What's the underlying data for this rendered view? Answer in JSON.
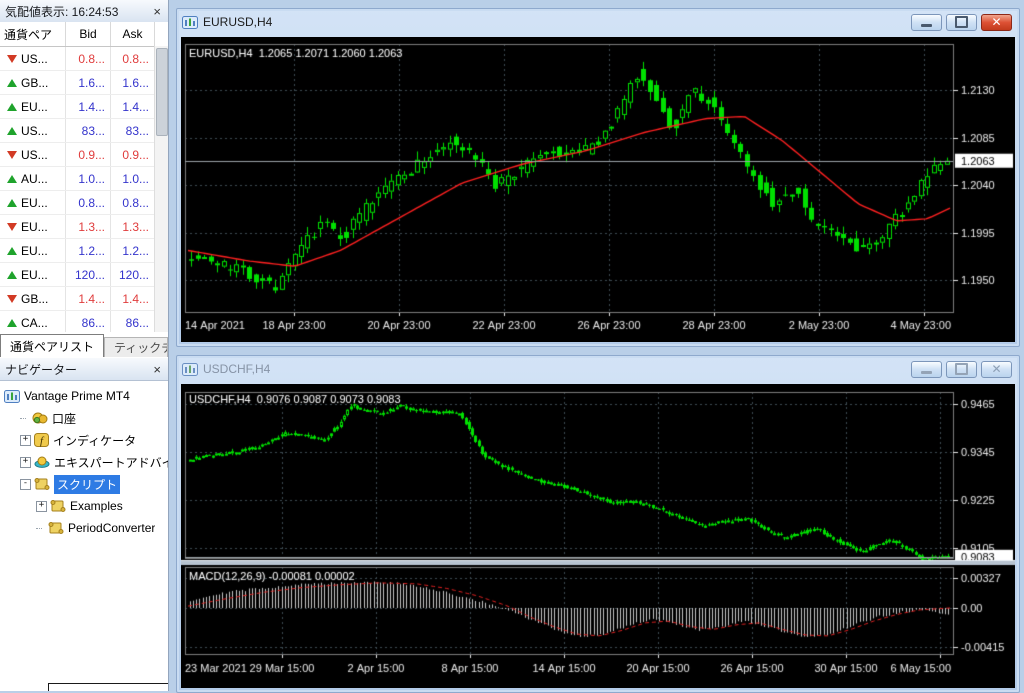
{
  "ui": {
    "close": "×",
    "close_x": "✕",
    "plus": "+",
    "minus": "-"
  },
  "market_watch": {
    "title": "気配値表示: 16:24:53",
    "columns": [
      "通貨ペア",
      "Bid",
      "Ask"
    ],
    "rows": [
      {
        "symbol": "US...",
        "direction": "down",
        "bid": "0.8...",
        "ask": "0.8...",
        "value_color": "#e03c3c"
      },
      {
        "symbol": "GB...",
        "direction": "up",
        "bid": "1.6...",
        "ask": "1.6...",
        "value_color": "#3434cc"
      },
      {
        "symbol": "EU...",
        "direction": "up",
        "bid": "1.4...",
        "ask": "1.4...",
        "value_color": "#3434cc"
      },
      {
        "symbol": "US...",
        "direction": "up",
        "bid": "83...",
        "ask": "83...",
        "value_color": "#3434cc"
      },
      {
        "symbol": "US...",
        "direction": "down",
        "bid": "0.9...",
        "ask": "0.9...",
        "value_color": "#e03c3c"
      },
      {
        "symbol": "AU...",
        "direction": "up",
        "bid": "1.0...",
        "ask": "1.0...",
        "value_color": "#3434cc"
      },
      {
        "symbol": "EU...",
        "direction": "up",
        "bid": "0.8...",
        "ask": "0.8...",
        "value_color": "#3434cc"
      },
      {
        "symbol": "EU...",
        "direction": "down",
        "bid": "1.3...",
        "ask": "1.3...",
        "value_color": "#e03c3c"
      },
      {
        "symbol": "EU...",
        "direction": "up",
        "bid": "1.2...",
        "ask": "1.2...",
        "value_color": "#3434cc"
      },
      {
        "symbol": "EU...",
        "direction": "up",
        "bid": "120...",
        "ask": "120...",
        "value_color": "#3434cc"
      },
      {
        "symbol": "GB...",
        "direction": "down",
        "bid": "1.4...",
        "ask": "1.4...",
        "value_color": "#e03c3c"
      },
      {
        "symbol": "CA...",
        "direction": "up",
        "bid": "86...",
        "ask": "86...",
        "value_color": "#3434cc"
      }
    ],
    "tabs": [
      {
        "label": "通貨ペアリスト",
        "active": true
      },
      {
        "label": "ティックチャート",
        "active": false
      }
    ]
  },
  "navigator": {
    "title": "ナビゲーター",
    "items": [
      {
        "label": "Vantage Prime MT4",
        "icon": "chart",
        "level": 0,
        "expand": null,
        "selected": false
      },
      {
        "label": "口座",
        "icon": "accounts",
        "level": 1,
        "expand": null,
        "selected": false
      },
      {
        "label": "インディケータ",
        "icon": "indicator",
        "level": 1,
        "expand": "plus",
        "selected": false
      },
      {
        "label": "エキスパートアドバイザ",
        "icon": "expert",
        "level": 1,
        "expand": "plus",
        "selected": false
      },
      {
        "label": "スクリプト",
        "icon": "script",
        "level": 1,
        "expand": "minus",
        "selected": true
      },
      {
        "label": "Examples",
        "icon": "script",
        "level": 2,
        "expand": "plus",
        "selected": false
      },
      {
        "label": "PeriodConverter",
        "icon": "script",
        "level": 2,
        "expand": null,
        "selected": false
      }
    ]
  },
  "windows": [
    {
      "title": "EURUSD,H4",
      "state": "active"
    },
    {
      "title": "USDCHF,H4",
      "state": "inactive"
    }
  ],
  "chart_data": [
    {
      "type": "candlestick",
      "symbol": "EURUSD,H4",
      "timeframe": "H4",
      "info_label": "EURUSD,H4  1.2065 1.2071 1.2060 1.2063",
      "ohlc": {
        "open": 1.2065,
        "high": 1.2071,
        "low": 1.206,
        "close": 1.2063
      },
      "current_price": 1.2063,
      "current_price_label": "1.2063",
      "y_ticks": [
        1.213,
        1.2085,
        1.204,
        1.1995,
        1.195
      ],
      "y_tick_labels": [
        "1.2130",
        "1.2085",
        "1.2040",
        "1.1995",
        "1.1950"
      ],
      "x_tick_labels": [
        "14 Apr 2021",
        "18 Apr 23:00",
        "20 Apr 23:00",
        "22 Apr 23:00",
        "26 Apr 23:00",
        "28 Apr 23:00",
        "2 May 23:00",
        "4 May 23:00"
      ],
      "candle_count": 118,
      "price_anchors": [
        [
          0,
          1.1975
        ],
        [
          0.04,
          1.1966
        ],
        [
          0.08,
          1.1958
        ],
        [
          0.12,
          1.1944
        ],
        [
          0.15,
          1.1975
        ],
        [
          0.18,
          1.2005
        ],
        [
          0.21,
          1.1992
        ],
        [
          0.24,
          1.2018
        ],
        [
          0.28,
          1.2048
        ],
        [
          0.32,
          1.2065
        ],
        [
          0.35,
          1.2083
        ],
        [
          0.38,
          1.2068
        ],
        [
          0.41,
          1.204
        ],
        [
          0.44,
          1.2052
        ],
        [
          0.48,
          1.2072
        ],
        [
          0.52,
          1.2068
        ],
        [
          0.55,
          1.2082
        ],
        [
          0.58,
          1.212
        ],
        [
          0.6,
          1.2148
        ],
        [
          0.62,
          1.2128
        ],
        [
          0.645,
          1.2092
        ],
        [
          0.67,
          1.213
        ],
        [
          0.69,
          1.2122
        ],
        [
          0.72,
          1.2088
        ],
        [
          0.75,
          1.205
        ],
        [
          0.78,
          1.2022
        ],
        [
          0.81,
          1.2038
        ],
        [
          0.83,
          1.2005
        ],
        [
          0.86,
          1.1992
        ],
        [
          0.89,
          1.198
        ],
        [
          0.92,
          1.1992
        ],
        [
          0.95,
          1.2015
        ],
        [
          0.98,
          1.2048
        ],
        [
          1,
          1.2063
        ]
      ],
      "ma_anchors": [
        [
          0,
          1.1978
        ],
        [
          0.08,
          1.1968
        ],
        [
          0.14,
          1.1963
        ],
        [
          0.2,
          1.1978
        ],
        [
          0.28,
          1.201
        ],
        [
          0.36,
          1.2042
        ],
        [
          0.44,
          1.206
        ],
        [
          0.52,
          1.2072
        ],
        [
          0.6,
          1.209
        ],
        [
          0.68,
          1.2103
        ],
        [
          0.73,
          1.2105
        ],
        [
          0.78,
          1.2082
        ],
        [
          0.83,
          1.2052
        ],
        [
          0.88,
          1.2022
        ],
        [
          0.93,
          1.2006
        ],
        [
          0.97,
          1.2008
        ],
        [
          1,
          1.2018
        ]
      ],
      "colors": {
        "background": "#000000",
        "grid": "#3d4b52",
        "candle": "#00e000",
        "ma_line": "#ff2020",
        "bid_line": "#9aa2a8",
        "axis_text": "#e8e8e8",
        "frame": "#7d7d7d",
        "tag_bg": "#ffffff",
        "tag_text": "#000000"
      }
    },
    {
      "type": "candlestick+macd",
      "symbol": "USDCHF,H4",
      "timeframe": "H4",
      "info_label": "USDCHF,H4  0.9076 0.9087 0.9073 0.9083",
      "ohlc": {
        "open": 0.9076,
        "high": 0.9087,
        "low": 0.9073,
        "close": 0.9083
      },
      "current_price": 0.9083,
      "current_price_label": "0.9083",
      "y_ticks": [
        0.9465,
        0.9345,
        0.9225,
        0.9105
      ],
      "y_tick_labels": [
        "0.9465",
        "0.9345",
        "0.9225",
        "0.9105"
      ],
      "x_tick_labels": [
        "23 Mar 2021",
        "29 Mar 15:00",
        "2 Apr 15:00",
        "8 Apr 15:00",
        "14 Apr 15:00",
        "20 Apr 15:00",
        "26 Apr 15:00",
        "30 Apr 15:00",
        "6 May 15:00"
      ],
      "candle_count": 232,
      "price_anchors": [
        [
          0,
          0.9325
        ],
        [
          0.03,
          0.9338
        ],
        [
          0.07,
          0.9346
        ],
        [
          0.1,
          0.9362
        ],
        [
          0.13,
          0.9392
        ],
        [
          0.16,
          0.9385
        ],
        [
          0.18,
          0.9372
        ],
        [
          0.2,
          0.9412
        ],
        [
          0.215,
          0.9462
        ],
        [
          0.24,
          0.9448
        ],
        [
          0.26,
          0.944
        ],
        [
          0.28,
          0.9462
        ],
        [
          0.3,
          0.945
        ],
        [
          0.33,
          0.9445
        ],
        [
          0.36,
          0.9442
        ],
        [
          0.375,
          0.9395
        ],
        [
          0.39,
          0.934
        ],
        [
          0.41,
          0.9315
        ],
        [
          0.44,
          0.929
        ],
        [
          0.47,
          0.927
        ],
        [
          0.5,
          0.9258
        ],
        [
          0.53,
          0.924
        ],
        [
          0.56,
          0.9218
        ],
        [
          0.59,
          0.9222
        ],
        [
          0.62,
          0.9205
        ],
        [
          0.65,
          0.9182
        ],
        [
          0.68,
          0.916
        ],
        [
          0.71,
          0.9172
        ],
        [
          0.74,
          0.9178
        ],
        [
          0.77,
          0.9145
        ],
        [
          0.79,
          0.913
        ],
        [
          0.81,
          0.9142
        ],
        [
          0.83,
          0.9155
        ],
        [
          0.85,
          0.913
        ],
        [
          0.87,
          0.9112
        ],
        [
          0.89,
          0.9096
        ],
        [
          0.91,
          0.9114
        ],
        [
          0.93,
          0.9126
        ],
        [
          0.95,
          0.9102
        ],
        [
          0.97,
          0.9078
        ],
        [
          1,
          0.9083
        ]
      ],
      "macd": {
        "label": "MACD(12,26,9) -0.00081 0.00002",
        "params": "12,26,9",
        "macd_value": -0.00081,
        "signal_value": 2e-05,
        "y_ticks": [
          0.00327,
          0.0,
          -0.00415
        ],
        "y_tick_labels": [
          "0.00327",
          "0.00",
          "-0.00415"
        ],
        "hist_anchors": [
          [
            0,
            0.0008
          ],
          [
            0.04,
            0.0016
          ],
          [
            0.09,
            0.0021
          ],
          [
            0.14,
            0.0025
          ],
          [
            0.19,
            0.0027
          ],
          [
            0.24,
            0.0028
          ],
          [
            0.28,
            0.0026
          ],
          [
            0.32,
            0.002
          ],
          [
            0.36,
            0.0012
          ],
          [
            0.4,
            0.0003
          ],
          [
            0.43,
            -0.0006
          ],
          [
            0.46,
            -0.0016
          ],
          [
            0.49,
            -0.0026
          ],
          [
            0.52,
            -0.0031
          ],
          [
            0.55,
            -0.0027
          ],
          [
            0.58,
            -0.0018
          ],
          [
            0.61,
            -0.0012
          ],
          [
            0.64,
            -0.0017
          ],
          [
            0.67,
            -0.0024
          ],
          [
            0.7,
            -0.0021
          ],
          [
            0.73,
            -0.0014
          ],
          [
            0.76,
            -0.002
          ],
          [
            0.79,
            -0.0028
          ],
          [
            0.82,
            -0.0032
          ],
          [
            0.85,
            -0.0026
          ],
          [
            0.88,
            -0.0017
          ],
          [
            0.91,
            -0.0009
          ],
          [
            0.94,
            -0.0004
          ],
          [
            0.97,
            -0.0002
          ],
          [
            1,
            -0.0008
          ]
        ],
        "signal_anchors": [
          [
            0,
            0.0002
          ],
          [
            0.05,
            0.001
          ],
          [
            0.1,
            0.0017
          ],
          [
            0.15,
            0.0022
          ],
          [
            0.2,
            0.0025
          ],
          [
            0.25,
            0.0027
          ],
          [
            0.3,
            0.0026
          ],
          [
            0.34,
            0.0021
          ],
          [
            0.38,
            0.0013
          ],
          [
            0.42,
            0.0002
          ],
          [
            0.45,
            -0.001
          ],
          [
            0.48,
            -0.002
          ],
          [
            0.51,
            -0.0028
          ],
          [
            0.54,
            -0.003
          ],
          [
            0.57,
            -0.0024
          ],
          [
            0.6,
            -0.0016
          ],
          [
            0.63,
            -0.0014
          ],
          [
            0.66,
            -0.002
          ],
          [
            0.69,
            -0.0023
          ],
          [
            0.72,
            -0.0018
          ],
          [
            0.75,
            -0.0016
          ],
          [
            0.78,
            -0.0023
          ],
          [
            0.81,
            -0.0029
          ],
          [
            0.84,
            -0.003
          ],
          [
            0.87,
            -0.0023
          ],
          [
            0.9,
            -0.0014
          ],
          [
            0.93,
            -0.0007
          ],
          [
            0.96,
            -0.0002
          ],
          [
            1,
            0.0
          ]
        ],
        "colors": {
          "histogram": "#c8c8c8",
          "signal_line": "#e02020"
        }
      },
      "colors": {
        "background": "#000000",
        "grid": "#3d4b52",
        "candle": "#00e000",
        "bid_line": "#9aa2a8",
        "axis_text": "#e8e8e8",
        "frame": "#7d7d7d",
        "tag_bg": "#ffffff",
        "tag_text": "#000000"
      }
    }
  ]
}
